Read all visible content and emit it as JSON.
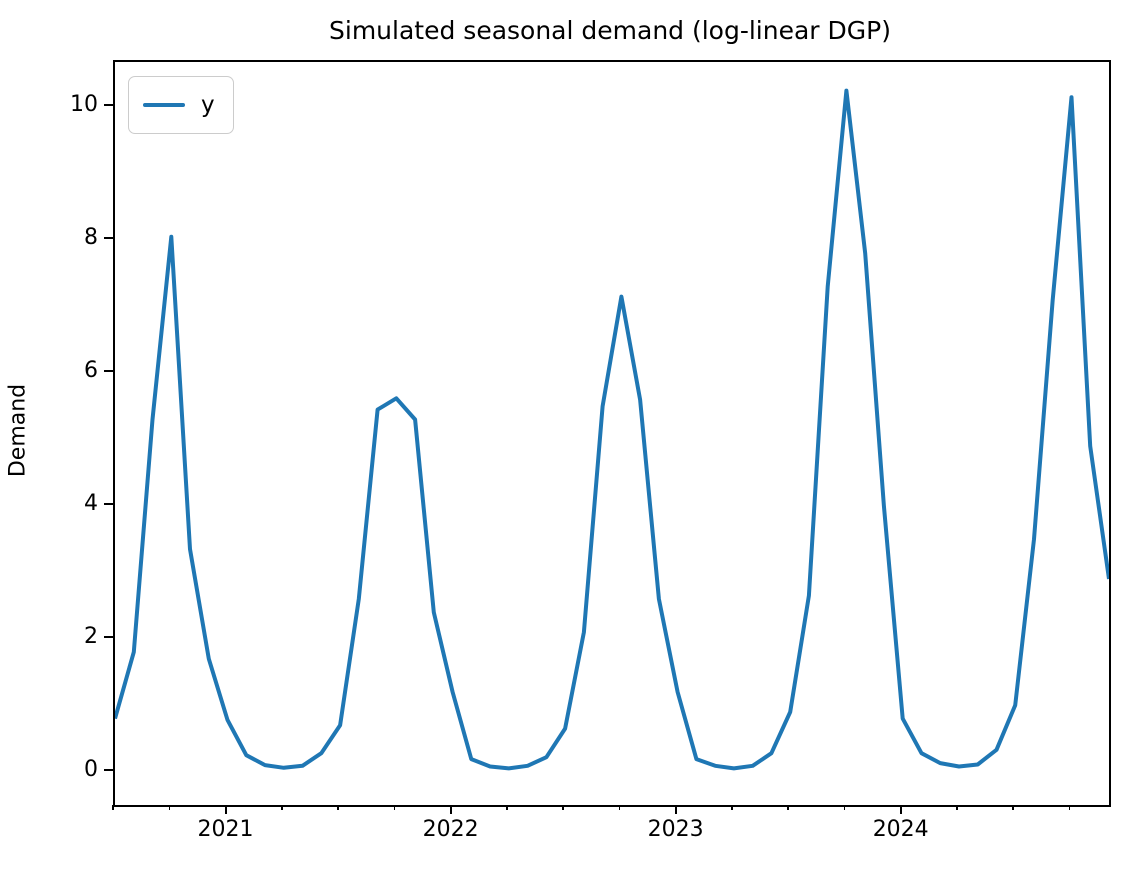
{
  "title": "Simulated seasonal demand (log-linear DGP)",
  "y_axis_label": "Demand",
  "legend": {
    "entries": [
      {
        "label": "y",
        "color": "#1f77b4"
      }
    ]
  },
  "colors": {
    "line": "#1f77b4",
    "spine": "#000000",
    "background": "#ffffff",
    "legend_border": "#cccccc"
  },
  "chart_data": {
    "type": "line",
    "title": "Simulated seasonal demand (log-linear DGP)",
    "xlabel": "",
    "ylabel": "Demand",
    "grid": false,
    "legend_position": "upper left",
    "legend_entries": [
      "y"
    ],
    "x": [
      "2020-07",
      "2020-08",
      "2020-09",
      "2020-10",
      "2020-11",
      "2020-12",
      "2021-01",
      "2021-02",
      "2021-03",
      "2021-04",
      "2021-05",
      "2021-06",
      "2021-07",
      "2021-08",
      "2021-09",
      "2021-10",
      "2021-11",
      "2021-12",
      "2022-01",
      "2022-02",
      "2022-03",
      "2022-04",
      "2022-05",
      "2022-06",
      "2022-07",
      "2022-08",
      "2022-09",
      "2022-10",
      "2022-11",
      "2022-12",
      "2023-01",
      "2023-02",
      "2023-03",
      "2023-04",
      "2023-05",
      "2023-06",
      "2023-07",
      "2023-08",
      "2023-09",
      "2023-10",
      "2023-11",
      "2023-12",
      "2024-01",
      "2024-02",
      "2024-03",
      "2024-04",
      "2024-05",
      "2024-06",
      "2024-07",
      "2024-08",
      "2024-09",
      "2024-10",
      "2024-11",
      "2024-12"
    ],
    "series": [
      {
        "name": "y",
        "color": "#1f77b4",
        "values": [
          0.8,
          1.8,
          5.3,
          8.05,
          3.35,
          1.7,
          0.78,
          0.25,
          0.1,
          0.06,
          0.09,
          0.28,
          0.7,
          2.6,
          5.45,
          5.62,
          5.3,
          2.4,
          1.2,
          0.19,
          0.08,
          0.05,
          0.09,
          0.22,
          0.65,
          2.1,
          5.5,
          7.15,
          5.6,
          2.6,
          1.2,
          0.19,
          0.09,
          0.05,
          0.09,
          0.28,
          0.9,
          2.65,
          7.3,
          10.25,
          7.8,
          4.0,
          0.8,
          0.28,
          0.13,
          0.08,
          0.11,
          0.33,
          1.0,
          3.5,
          7.1,
          10.15,
          4.9,
          2.9
        ]
      }
    ],
    "xlim_index": [
      0,
      53
    ],
    "ylim": [
      -0.5,
      10.68
    ],
    "yticks": [
      {
        "label": "0",
        "value": 0
      },
      {
        "label": "2",
        "value": 2
      },
      {
        "label": "4",
        "value": 4
      },
      {
        "label": "6",
        "value": 6
      },
      {
        "label": "8",
        "value": 8
      },
      {
        "label": "10",
        "value": 10
      }
    ],
    "xticks_major": [
      {
        "label": "2021",
        "index": 6
      },
      {
        "label": "2022",
        "index": 18
      },
      {
        "label": "2023",
        "index": 30
      },
      {
        "label": "2024",
        "index": 42
      }
    ],
    "xticks_minor_indices": [
      0,
      3,
      9,
      12,
      15,
      21,
      24,
      27,
      33,
      36,
      39,
      45,
      48,
      51
    ]
  }
}
